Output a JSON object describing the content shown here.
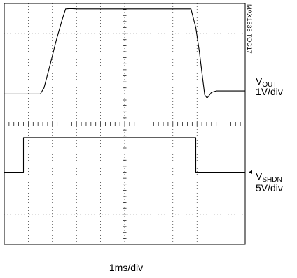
{
  "chart_data": {
    "type": "line",
    "title": "",
    "xlabel": "1ms/div",
    "toc_label": "MAX1636 TOC17",
    "grid": {
      "x_divisions": 10,
      "y_divisions": 8,
      "visible": true
    },
    "xlim": [
      0,
      10
    ],
    "ylim": [
      0,
      8
    ],
    "series": [
      {
        "name": "VOUT",
        "name_main": "V",
        "name_sub": "OUT",
        "scale": "1V/div",
        "x": [
          0,
          1.5,
          1.65,
          1.9,
          2.15,
          2.4,
          2.55,
          2.75,
          3.05,
          7.75,
          7.95,
          8.1,
          8.22,
          8.32,
          8.42,
          8.6,
          8.8,
          10
        ],
        "y": [
          5.0,
          5.0,
          5.2,
          5.95,
          6.75,
          7.45,
          7.82,
          7.83,
          7.82,
          7.82,
          7.2,
          6.4,
          5.6,
          4.97,
          4.86,
          5.05,
          5.1,
          5.1
        ]
      },
      {
        "name": "VSHDN",
        "name_main": "V",
        "name_sub": "SHDN",
        "scale": "5V/div",
        "x": [
          0,
          0.8,
          0.8,
          7.95,
          7.95,
          10
        ],
        "y": [
          2.4,
          2.4,
          3.55,
          3.55,
          2.4,
          2.4
        ]
      }
    ],
    "ground_marker": "◂"
  }
}
